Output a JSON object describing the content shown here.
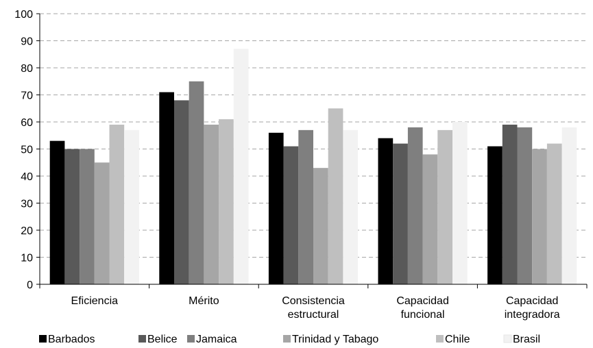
{
  "chart_data": {
    "type": "bar",
    "categories": [
      [
        "Eficiencia"
      ],
      [
        "Mérito"
      ],
      [
        "Consistencia",
        "estructural"
      ],
      [
        "Capacidad",
        "funcional"
      ],
      [
        "Capacidad",
        "integradora"
      ]
    ],
    "series": [
      {
        "name": "Barbados",
        "color": "#000000",
        "values": [
          53,
          71,
          56,
          54,
          51
        ]
      },
      {
        "name": "Belice",
        "color": "#595959",
        "values": [
          50,
          68,
          51,
          52,
          59
        ]
      },
      {
        "name": "Jamaica",
        "color": "#7f7f7f",
        "values": [
          50,
          75,
          57,
          58,
          58
        ]
      },
      {
        "name": "Trinidad y Tabago",
        "color": "#a6a6a6",
        "values": [
          45,
          59,
          43,
          48,
          50
        ]
      },
      {
        "name": "Chile",
        "color": "#bfbfbf",
        "values": [
          59,
          61,
          65,
          57,
          52
        ]
      },
      {
        "name": "Brasil",
        "color": "#f2f2f2",
        "values": [
          57,
          87,
          57,
          60,
          58
        ]
      }
    ],
    "ylim": [
      0,
      100
    ],
    "yticks": [
      0,
      10,
      20,
      30,
      40,
      50,
      60,
      70,
      80,
      90,
      100
    ],
    "grid": true,
    "legend_position": "bottom"
  }
}
